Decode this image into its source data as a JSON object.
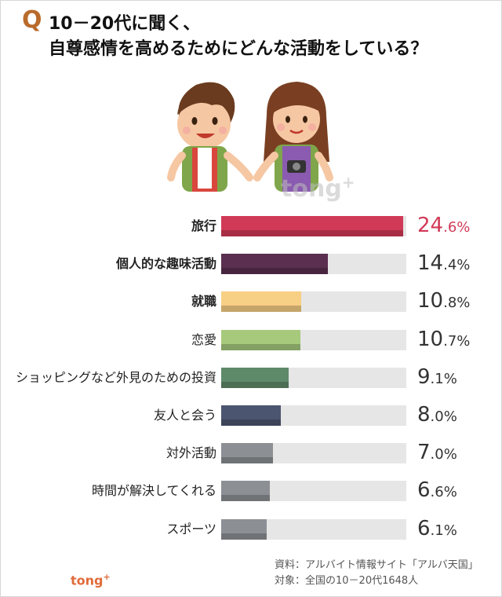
{
  "header": {
    "q_mark": "Q",
    "line1": "10－20代に聞く、",
    "line2": "自尊感情を高めるためにどんな活動をしている？"
  },
  "watermark": {
    "text": "tong",
    "plus": "+"
  },
  "logo": {
    "text": "tong",
    "plus": "+"
  },
  "source": {
    "line1": "資料：アルバイト情報サイト「アルバ天国」",
    "line2": "対象：全国の10－20代1648人"
  },
  "colors": {
    "accent": "#d13a57",
    "q_mark": "#b96b2c",
    "track": "#e6e6e6"
  },
  "chart_data": {
    "type": "bar",
    "orientation": "horizontal",
    "categories": [
      "旅行",
      "個人的な趣味活動",
      "就職",
      "恋愛",
      "ショッピングなど外見のための投資",
      "友人と会う",
      "対外活動",
      "時間が解決してくれる",
      "スポーツ"
    ],
    "values": [
      24.6,
      14.4,
      10.8,
      10.7,
      9.1,
      8.0,
      7.0,
      6.6,
      6.1
    ],
    "labels": [
      {
        "int": "24",
        "dec": ".6%"
      },
      {
        "int": "14",
        "dec": ".4%"
      },
      {
        "int": "10",
        "dec": ".8%"
      },
      {
        "int": "10",
        "dec": ".7%"
      },
      {
        "int": "9",
        "dec": ".1%"
      },
      {
        "int": "8",
        "dec": ".0%"
      },
      {
        "int": "7",
        "dec": ".0%"
      },
      {
        "int": "6",
        "dec": ".6%"
      },
      {
        "int": "6",
        "dec": ".1%"
      }
    ],
    "bar_colors": [
      "#d13a57",
      "#5b2f4f",
      "#f7cf85",
      "#a6c97c",
      "#5e8a6a",
      "#4c5570",
      "#8c9094",
      "#8c9094",
      "#8c9094"
    ],
    "label_bold": [
      true,
      true,
      true,
      false,
      false,
      false,
      false,
      false,
      false
    ],
    "xlim": [
      0,
      25
    ]
  }
}
